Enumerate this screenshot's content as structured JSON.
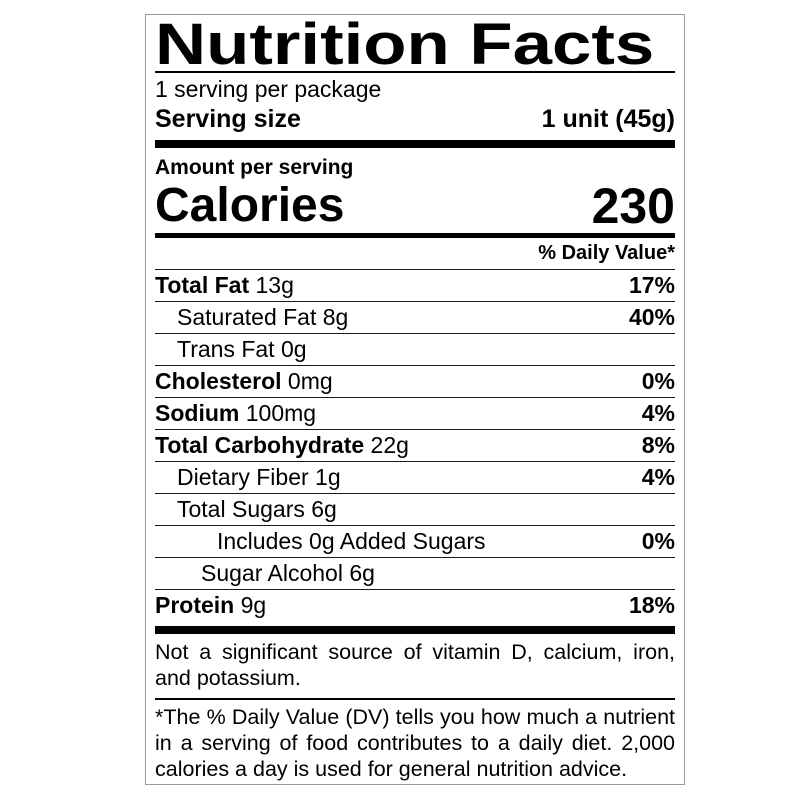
{
  "label": {
    "title": "Nutrition Facts",
    "servings_per_package": "1 serving per package",
    "serving_size_label": "Serving size",
    "serving_size_value": "1 unit (45g)",
    "amount_per_serving_label": "Amount per serving",
    "calories_label": "Calories",
    "calories_value": "230",
    "daily_value_header": "% Daily Value*",
    "rows": [
      {
        "label": "Total Fat",
        "amount": "13g",
        "daily_value": "17%",
        "bold": true,
        "indent": 0
      },
      {
        "label": "Saturated Fat",
        "amount": "8g",
        "daily_value": "40%",
        "bold": false,
        "indent": 1
      },
      {
        "label": "Trans Fat",
        "amount": "0g",
        "daily_value": "",
        "bold": false,
        "indent": 1
      },
      {
        "label": "Cholesterol",
        "amount": "0mg",
        "daily_value": "0%",
        "bold": true,
        "indent": 0
      },
      {
        "label": "Sodium",
        "amount": "100mg",
        "daily_value": "4%",
        "bold": true,
        "indent": 0
      },
      {
        "label": "Total Carbohydrate",
        "amount": "22g",
        "daily_value": "8%",
        "bold": true,
        "indent": 0
      },
      {
        "label": "Dietary Fiber",
        "amount": "1g",
        "daily_value": "4%",
        "bold": false,
        "indent": 1
      },
      {
        "label": "Total Sugars",
        "amount": "6g",
        "daily_value": "",
        "bold": false,
        "indent": 1
      },
      {
        "label": "Includes 0g Added Sugars",
        "amount": "",
        "daily_value": "0%",
        "bold": false,
        "indent": 3
      },
      {
        "label": "Sugar Alcohol",
        "amount": "6g",
        "daily_value": "",
        "bold": false,
        "indent": 2
      },
      {
        "label": "Protein",
        "amount": "9g",
        "daily_value": "18%",
        "bold": true,
        "indent": 0
      }
    ],
    "insignificant_note": "Not a significant source of vitamin D, calcium, iron, and potassium.",
    "daily_value_footnote": "*The % Daily Value (DV) tells you how much a nutrient in a serving of food contributes to a daily diet. 2,000 calories a day is used for general nutrition advice.",
    "colors": {
      "text": "#000000",
      "background": "#ffffff",
      "border": "#9a9a9a",
      "separator": "#000000"
    }
  }
}
